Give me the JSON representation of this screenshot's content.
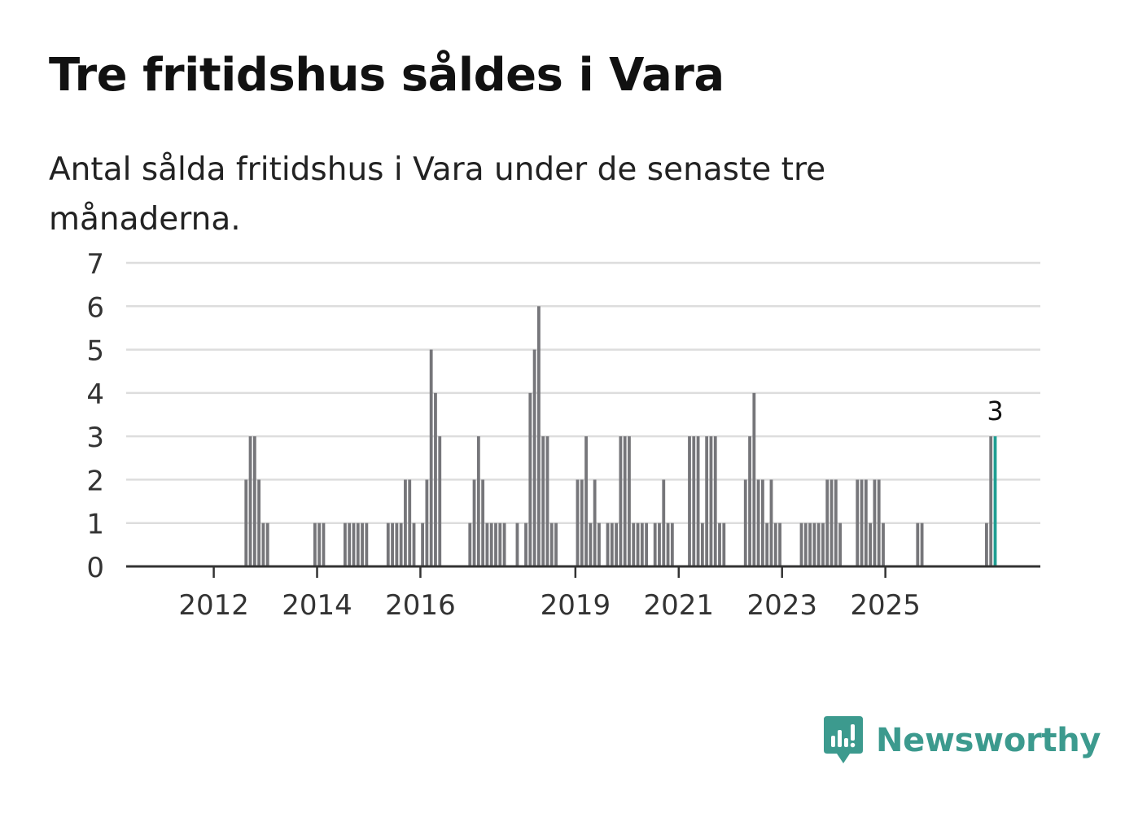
{
  "title": "Tre fritidshus såldes i Vara",
  "subtitle": "Antal sålda fritidshus i Vara under de senaste tre månaderna.",
  "brand": {
    "name": "Newsworthy",
    "logo_icon": "newsworthy-logo-icon"
  },
  "colors": {
    "bar": "#76767a",
    "highlight": "#1e9e92",
    "grid": "#dddddd",
    "axis": "#333333",
    "brand": "#3c9a8e"
  },
  "chart_data": {
    "type": "bar",
    "title": "Tre fritidshus såldes i Vara",
    "xlabel": "",
    "ylabel": "",
    "ylim": [
      0,
      7
    ],
    "yticks": [
      "0",
      "1",
      "2",
      "3",
      "4",
      "5",
      "6",
      "7"
    ],
    "xticks": [
      "2012",
      "2014",
      "2016",
      "2019",
      "2021",
      "2023",
      "2025"
    ],
    "grid": true,
    "start_month": "2011-07",
    "frequency": "monthly",
    "values": [
      0,
      0,
      0,
      0,
      0,
      0,
      0,
      0,
      0,
      0,
      0,
      0,
      0,
      2,
      3,
      3,
      2,
      1,
      1,
      0,
      0,
      0,
      0,
      0,
      0,
      0,
      0,
      0,
      0,
      1,
      1,
      1,
      0,
      0,
      0,
      0,
      1,
      1,
      1,
      1,
      1,
      1,
      0,
      0,
      0,
      0,
      1,
      1,
      1,
      1,
      2,
      2,
      1,
      0,
      1,
      2,
      5,
      4,
      3,
      0,
      0,
      0,
      0,
      0,
      0,
      1,
      2,
      3,
      2,
      1,
      1,
      1,
      1,
      1,
      0,
      0,
      1,
      0,
      1,
      4,
      5,
      6,
      3,
      3,
      1,
      1,
      0,
      0,
      0,
      0,
      2,
      2,
      3,
      1,
      2,
      1,
      0,
      1,
      1,
      1,
      3,
      3,
      3,
      1,
      1,
      1,
      1,
      0,
      1,
      1,
      2,
      1,
      1,
      0,
      0,
      0,
      3,
      3,
      3,
      1,
      3,
      3,
      3,
      1,
      1,
      0,
      0,
      0,
      0,
      2,
      3,
      4,
      2,
      2,
      1,
      2,
      1,
      1,
      0,
      0,
      0,
      0,
      1,
      1,
      1,
      1,
      1,
      1,
      2,
      2,
      2,
      1,
      0,
      0,
      0,
      2,
      2,
      2,
      1,
      2,
      2,
      1,
      0,
      0,
      0,
      0,
      0,
      0,
      0,
      1,
      1,
      0,
      0,
      0,
      0,
      0,
      0,
      0,
      0,
      0,
      0,
      0,
      0,
      0,
      0,
      1,
      3,
      3
    ],
    "highlight_label": "3"
  }
}
